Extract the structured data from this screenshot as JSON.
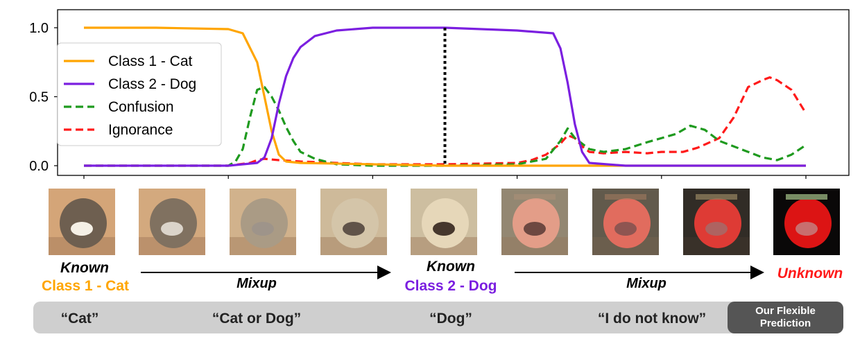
{
  "chart_data": {
    "type": "line",
    "ylim": [
      0,
      1
    ],
    "yticks": [
      "0.0",
      "0.5",
      "1.0"
    ],
    "grid": false,
    "legend_position": "top-left",
    "series": [
      {
        "name": "Class 1 - Cat",
        "color": "#ffa500",
        "style": "solid",
        "x": [
          0,
          10,
          20,
          22,
          24,
          25,
          26,
          27,
          28,
          30,
          40,
          50,
          60,
          70,
          80,
          90,
          100
        ],
        "y": [
          1.0,
          1.0,
          0.99,
          0.96,
          0.75,
          0.5,
          0.25,
          0.08,
          0.03,
          0.02,
          0.01,
          0.0,
          0.0,
          0.0,
          0.0,
          0.0,
          0.0
        ]
      },
      {
        "name": "Class 2 - Dog",
        "color": "#7b1fe0",
        "style": "solid",
        "x": [
          0,
          20,
          24,
          25,
          26,
          27,
          28,
          29,
          30,
          32,
          35,
          40,
          50,
          60,
          65,
          66,
          67,
          68,
          69,
          70,
          75,
          80,
          90,
          100
        ],
        "y": [
          0.0,
          0.0,
          0.02,
          0.06,
          0.2,
          0.45,
          0.65,
          0.78,
          0.86,
          0.94,
          0.98,
          1.0,
          1.0,
          0.98,
          0.96,
          0.85,
          0.6,
          0.3,
          0.1,
          0.02,
          0.0,
          0.0,
          0.0,
          0.0
        ]
      },
      {
        "name": "Confusion",
        "color": "#1f9a1f",
        "style": "dashed",
        "x": [
          0,
          20,
          21,
          22,
          23,
          24,
          25,
          26,
          27,
          28,
          29,
          30,
          32,
          35,
          40,
          50,
          60,
          64,
          66,
          67,
          68,
          70,
          72,
          75,
          78,
          82,
          84,
          86,
          88,
          92,
          94,
          96,
          98,
          100
        ],
        "y": [
          0.0,
          0.0,
          0.03,
          0.12,
          0.35,
          0.55,
          0.57,
          0.5,
          0.4,
          0.28,
          0.18,
          0.1,
          0.05,
          0.01,
          0.0,
          0.0,
          0.01,
          0.05,
          0.18,
          0.27,
          0.2,
          0.12,
          0.1,
          0.12,
          0.17,
          0.23,
          0.29,
          0.26,
          0.18,
          0.1,
          0.06,
          0.04,
          0.08,
          0.15
        ]
      },
      {
        "name": "Ignorance",
        "color": "#ff1a1a",
        "style": "dashed",
        "x": [
          0,
          20,
          23,
          24,
          25,
          27,
          30,
          40,
          50,
          60,
          62,
          64,
          66,
          67,
          68,
          69,
          70,
          72,
          75,
          78,
          80,
          83,
          85,
          88,
          90,
          92,
          94,
          95,
          96,
          98,
          100
        ],
        "y": [
          0.0,
          0.0,
          0.02,
          0.04,
          0.05,
          0.04,
          0.03,
          0.01,
          0.01,
          0.02,
          0.04,
          0.08,
          0.16,
          0.22,
          0.2,
          0.14,
          0.1,
          0.09,
          0.1,
          0.09,
          0.1,
          0.1,
          0.13,
          0.2,
          0.35,
          0.57,
          0.62,
          0.64,
          0.62,
          0.55,
          0.38
        ]
      }
    ],
    "vline_x": 50
  },
  "images": [
    {
      "alt": "cat",
      "mix": 0.0,
      "unk": 0.0
    },
    {
      "alt": "cat-dog mix 1",
      "mix": 0.15,
      "unk": 0.0
    },
    {
      "alt": "cat-dog mix 2",
      "mix": 0.5,
      "unk": 0.0
    },
    {
      "alt": "cat-dog mix 3",
      "mix": 0.85,
      "unk": 0.0
    },
    {
      "alt": "dog",
      "mix": 1.0,
      "unk": 0.0
    },
    {
      "alt": "dog-unknown mix 1",
      "mix": 1.0,
      "unk": 0.3
    },
    {
      "alt": "dog-unknown mix 2",
      "mix": 1.0,
      "unk": 0.55
    },
    {
      "alt": "dog-unknown mix 3",
      "mix": 1.0,
      "unk": 0.8
    },
    {
      "alt": "unknown",
      "mix": 1.0,
      "unk": 1.0
    }
  ],
  "labels": {
    "known1": "Known",
    "class1": "Class 1 - Cat",
    "mixup1": "Mixup",
    "known2": "Known",
    "class2": "Class 2 - Dog",
    "mixup2": "Mixup",
    "unknown": "Unknown"
  },
  "colors": {
    "cat": "#ffa500",
    "dog": "#7b1fe0",
    "unknown": "#ff1a1a"
  },
  "predictions": {
    "cat": "“Cat”",
    "cat_or_dog": "“Cat or Dog”",
    "dog": "“Dog”",
    "dont_know": "“I do not know”",
    "flexible": "Our Flexible Prediction"
  }
}
